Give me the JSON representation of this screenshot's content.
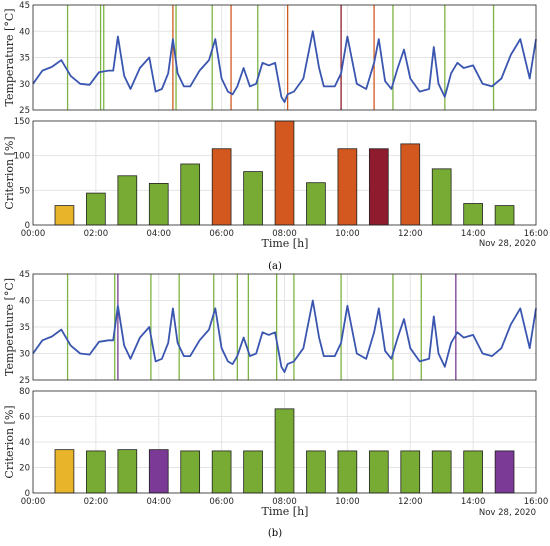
{
  "figure": {
    "caption_a": "(a)",
    "caption_b": "(b)",
    "date_label": "Nov 28, 2020",
    "xlabel": "Time [h]"
  },
  "colors": {
    "temperature_line": "#3a56b0",
    "grid": "#e4e4e4",
    "axis": "#262626",
    "bar_green": "#78ab34",
    "bar_yellow": "#e8b52a",
    "bar_orange": "#d2581f",
    "bar_darkred": "#8e1b2e",
    "bar_purple": "#7a3a96",
    "marker_green": "#7cb342",
    "marker_orange": "#d2581f",
    "marker_purple": "#7a3a96"
  },
  "chart_data": [
    {
      "panel": "a-top",
      "type": "line",
      "ylabel": "Temperature [°C]",
      "ylim": [
        25,
        45
      ],
      "yticks": [
        25,
        30,
        35,
        40,
        45
      ],
      "xlim": [
        0,
        16
      ],
      "xticks": [
        0,
        2,
        4,
        6,
        8,
        10,
        12,
        14,
        16
      ],
      "xtick_labels": [],
      "grid": true,
      "series": [
        {
          "x": [
            0,
            0.3,
            0.6,
            0.9,
            1.2,
            1.5,
            1.8,
            2.1,
            2.4,
            2.55,
            2.7,
            2.9,
            3.1,
            3.4,
            3.7,
            3.9,
            4.1,
            4.3,
            4.45,
            4.6,
            4.8,
            5.0,
            5.3,
            5.6,
            5.8,
            6.0,
            6.2,
            6.35,
            6.5,
            6.7,
            6.9,
            7.1,
            7.3,
            7.5,
            7.7,
            7.9,
            8.0,
            8.1,
            8.3,
            8.6,
            8.9,
            9.1,
            9.25,
            9.4,
            9.6,
            9.8,
            10.0,
            10.3,
            10.6,
            10.85,
            11.0,
            11.2,
            11.4,
            11.6,
            11.8,
            12.0,
            12.3,
            12.6,
            12.75,
            12.9,
            13.1,
            13.3,
            13.5,
            13.7,
            14.0,
            14.3,
            14.6,
            14.9,
            15.2,
            15.5,
            15.8,
            16.0
          ],
          "y": [
            30,
            32.5,
            33.2,
            34.5,
            31.5,
            30,
            29.8,
            32.2,
            32.5,
            32.5,
            39,
            31.5,
            29,
            33,
            35,
            28.5,
            29,
            32,
            38.5,
            32,
            29.5,
            29.5,
            32.5,
            34.5,
            38.5,
            31,
            28.5,
            28,
            29.5,
            33,
            29.5,
            30,
            34,
            33.5,
            34,
            27.5,
            26.5,
            28,
            28.5,
            31,
            40,
            33,
            29.5,
            29.5,
            29.5,
            32,
            39,
            30,
            29,
            34,
            38.5,
            30.5,
            29,
            33,
            36.5,
            31,
            28.5,
            29,
            37,
            30,
            27.5,
            32,
            34,
            33,
            33.5,
            30,
            29.5,
            31,
            35.5,
            38.5,
            31,
            38.5
          ]
        }
      ],
      "markers": [
        {
          "x": 1.1,
          "color": "green"
        },
        {
          "x": 2.15,
          "color": "green"
        },
        {
          "x": 2.25,
          "color": "green"
        },
        {
          "x": 4.45,
          "color": "orange"
        },
        {
          "x": 4.55,
          "color": "green"
        },
        {
          "x": 5.7,
          "color": "green"
        },
        {
          "x": 6.3,
          "color": "orange"
        },
        {
          "x": 7.15,
          "color": "green"
        },
        {
          "x": 8.1,
          "color": "orange"
        },
        {
          "x": 9.8,
          "color": "darkred"
        },
        {
          "x": 10.85,
          "color": "orange"
        },
        {
          "x": 11.45,
          "color": "green"
        },
        {
          "x": 13.1,
          "color": "green"
        },
        {
          "x": 14.65,
          "color": "green"
        }
      ]
    },
    {
      "panel": "a-bottom",
      "type": "bar",
      "ylabel": "Criterion [%]",
      "ylim": [
        0,
        150
      ],
      "yticks": [
        0,
        50,
        100,
        150
      ],
      "xlim": [
        0,
        16
      ],
      "xticks": [
        0,
        2,
        4,
        6,
        8,
        10,
        12,
        14,
        16
      ],
      "xtick_labels": [
        "00:00",
        "02:00",
        "04:00",
        "06:00",
        "08:00",
        "10:00",
        "12:00",
        "14:00",
        "16:00"
      ],
      "grid": true,
      "x": [
        1,
        2,
        3,
        4,
        5,
        6,
        7,
        8,
        9,
        10,
        11,
        12,
        13,
        14,
        15
      ],
      "values": [
        28,
        46,
        71,
        60,
        88,
        110,
        77,
        150,
        61,
        110,
        110,
        117,
        81,
        31,
        28
      ],
      "bar_colors": [
        "yellow",
        "green",
        "green",
        "green",
        "green",
        "orange",
        "green",
        "orange",
        "green",
        "orange",
        "darkred",
        "orange",
        "green",
        "green",
        "green"
      ]
    },
    {
      "panel": "b-top",
      "type": "line",
      "ylabel": "Temperature [°C]",
      "ylim": [
        25,
        45
      ],
      "yticks": [
        25,
        30,
        35,
        40,
        45
      ],
      "xlim": [
        0,
        16
      ],
      "xticks": [
        0,
        2,
        4,
        6,
        8,
        10,
        12,
        14,
        16
      ],
      "xtick_labels": [],
      "grid": true,
      "series": [
        {
          "x": [
            0,
            0.3,
            0.6,
            0.9,
            1.2,
            1.5,
            1.8,
            2.1,
            2.4,
            2.55,
            2.7,
            2.9,
            3.1,
            3.4,
            3.7,
            3.9,
            4.1,
            4.3,
            4.45,
            4.6,
            4.8,
            5.0,
            5.3,
            5.6,
            5.8,
            6.0,
            6.2,
            6.35,
            6.5,
            6.7,
            6.9,
            7.1,
            7.3,
            7.5,
            7.7,
            7.9,
            8.0,
            8.1,
            8.3,
            8.6,
            8.9,
            9.1,
            9.25,
            9.4,
            9.6,
            9.8,
            10.0,
            10.3,
            10.6,
            10.85,
            11.0,
            11.2,
            11.4,
            11.6,
            11.8,
            12.0,
            12.3,
            12.6,
            12.75,
            12.9,
            13.1,
            13.3,
            13.5,
            13.7,
            14.0,
            14.3,
            14.6,
            14.9,
            15.2,
            15.5,
            15.8,
            16.0
          ],
          "y": [
            30,
            32.5,
            33.2,
            34.5,
            31.5,
            30,
            29.8,
            32.2,
            32.5,
            32.5,
            39,
            31.5,
            29,
            33,
            35,
            28.5,
            29,
            32,
            38.5,
            32,
            29.5,
            29.5,
            32.5,
            34.5,
            38.5,
            31,
            28.5,
            28,
            29.5,
            33,
            29.5,
            30,
            34,
            33.5,
            34,
            27.5,
            26.5,
            28,
            28.5,
            31,
            40,
            33,
            29.5,
            29.5,
            29.5,
            32,
            39,
            30,
            29,
            34,
            38.5,
            30.5,
            29,
            33,
            36.5,
            31,
            28.5,
            29,
            37,
            30,
            27.5,
            32,
            34,
            33,
            33.5,
            30,
            29.5,
            31,
            35.5,
            38.5,
            31,
            38.5
          ]
        }
      ],
      "markers": [
        {
          "x": 1.1,
          "color": "green"
        },
        {
          "x": 2.6,
          "color": "green"
        },
        {
          "x": 2.7,
          "color": "purple"
        },
        {
          "x": 3.75,
          "color": "green"
        },
        {
          "x": 4.65,
          "color": "green"
        },
        {
          "x": 5.75,
          "color": "green"
        },
        {
          "x": 6.5,
          "color": "green"
        },
        {
          "x": 6.85,
          "color": "green"
        },
        {
          "x": 7.75,
          "color": "green"
        },
        {
          "x": 8.3,
          "color": "green"
        },
        {
          "x": 9.8,
          "color": "green"
        },
        {
          "x": 11.45,
          "color": "green"
        },
        {
          "x": 12.35,
          "color": "green"
        },
        {
          "x": 13.45,
          "color": "purple"
        }
      ]
    },
    {
      "panel": "b-bottom",
      "type": "bar",
      "ylabel": "Criterion [%]",
      "ylim": [
        0,
        80
      ],
      "yticks": [
        0,
        20,
        40,
        60,
        80
      ],
      "xlim": [
        0,
        16
      ],
      "xticks": [
        0,
        2,
        4,
        6,
        8,
        10,
        12,
        14,
        16
      ],
      "xtick_labels": [
        "00:00",
        "02:00",
        "04:00",
        "06:00",
        "08:00",
        "10:00",
        "12:00",
        "14:00",
        "16:00"
      ],
      "grid": true,
      "x": [
        1,
        2,
        3,
        4,
        5,
        6,
        7,
        8,
        9,
        10,
        11,
        12,
        13,
        14,
        15
      ],
      "values": [
        34,
        33,
        34,
        34,
        33,
        33,
        33,
        66,
        33,
        33,
        33,
        33,
        33,
        33,
        33
      ],
      "bar_colors": [
        "yellow",
        "green",
        "green",
        "purple",
        "green",
        "green",
        "green",
        "green",
        "green",
        "green",
        "green",
        "green",
        "green",
        "green",
        "purple"
      ]
    }
  ]
}
